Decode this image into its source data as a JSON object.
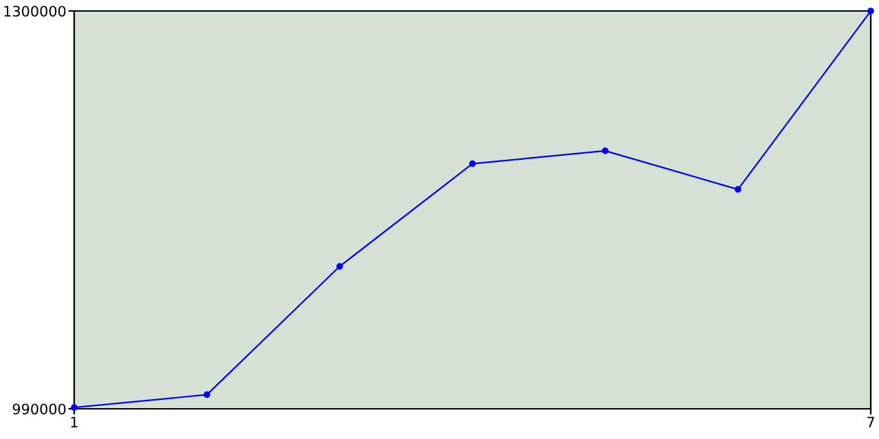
{
  "chart_data": {
    "type": "line",
    "x": [
      1,
      2,
      3,
      4,
      5,
      6,
      7
    ],
    "series": [
      {
        "color": "#0000ff",
        "values": [
          991000,
          1001000,
          1101000,
          1181000,
          1191000,
          1161000,
          1300000
        ]
      }
    ],
    "xlim": [
      1,
      7
    ],
    "xticks": [
      1,
      7
    ],
    "ylim": [
      990000,
      1300000
    ],
    "yticks": [
      990000,
      1300000
    ],
    "marker": "circle",
    "legend": false
  }
}
